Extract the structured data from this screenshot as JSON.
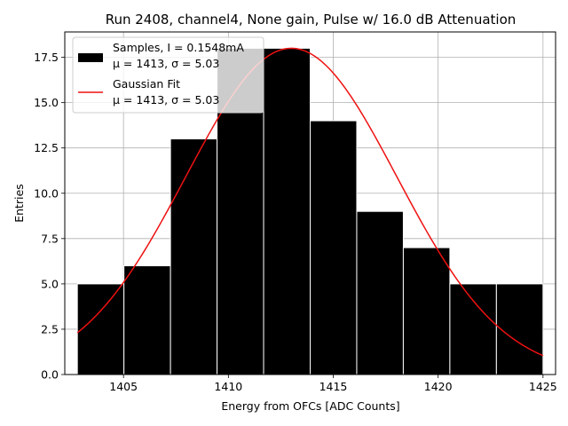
{
  "chart_data": {
    "type": "bar",
    "title": "Run 2408, channel4, None gain, Pulse w/ 16.0 dB Attenuation",
    "xlabel": "Energy from OFCs [ADC Counts]",
    "ylabel": "Entries",
    "xlim": [
      1402.2,
      1425.6
    ],
    "ylim": [
      0,
      18.9
    ],
    "xticks": [
      1405,
      1410,
      1415,
      1420,
      1425
    ],
    "xtick_labels": [
      "1405",
      "1410",
      "1415",
      "1420",
      "1425"
    ],
    "yticks": [
      0,
      2.5,
      5,
      7.5,
      10,
      12.5,
      15,
      17.5
    ],
    "ytick_labels": [
      "0.0",
      "2.5",
      "5.0",
      "7.5",
      "10.0",
      "12.5",
      "15.0",
      "17.5"
    ],
    "grid": true,
    "legend_placement": "top-left",
    "histogram": {
      "name": "Samples, I = 0.1548mA",
      "stats": "μ = 1413, σ = 5.03",
      "color": "#000000",
      "bin_edges": [
        1402.8,
        1405.02,
        1407.24,
        1409.46,
        1411.68,
        1413.9,
        1416.12,
        1418.34,
        1420.56,
        1422.78,
        1425.0
      ],
      "values": [
        5,
        6,
        13,
        18,
        18,
        14,
        9,
        7,
        5,
        5
      ]
    },
    "fit": {
      "name": "Gaussian Fit",
      "stats": "μ = 1413, σ = 5.03",
      "color": "#ee1111",
      "mu": 1413.0,
      "sigma": 5.03,
      "amplitude": 18.0,
      "x_range": [
        1402.8,
        1425.0
      ]
    }
  }
}
